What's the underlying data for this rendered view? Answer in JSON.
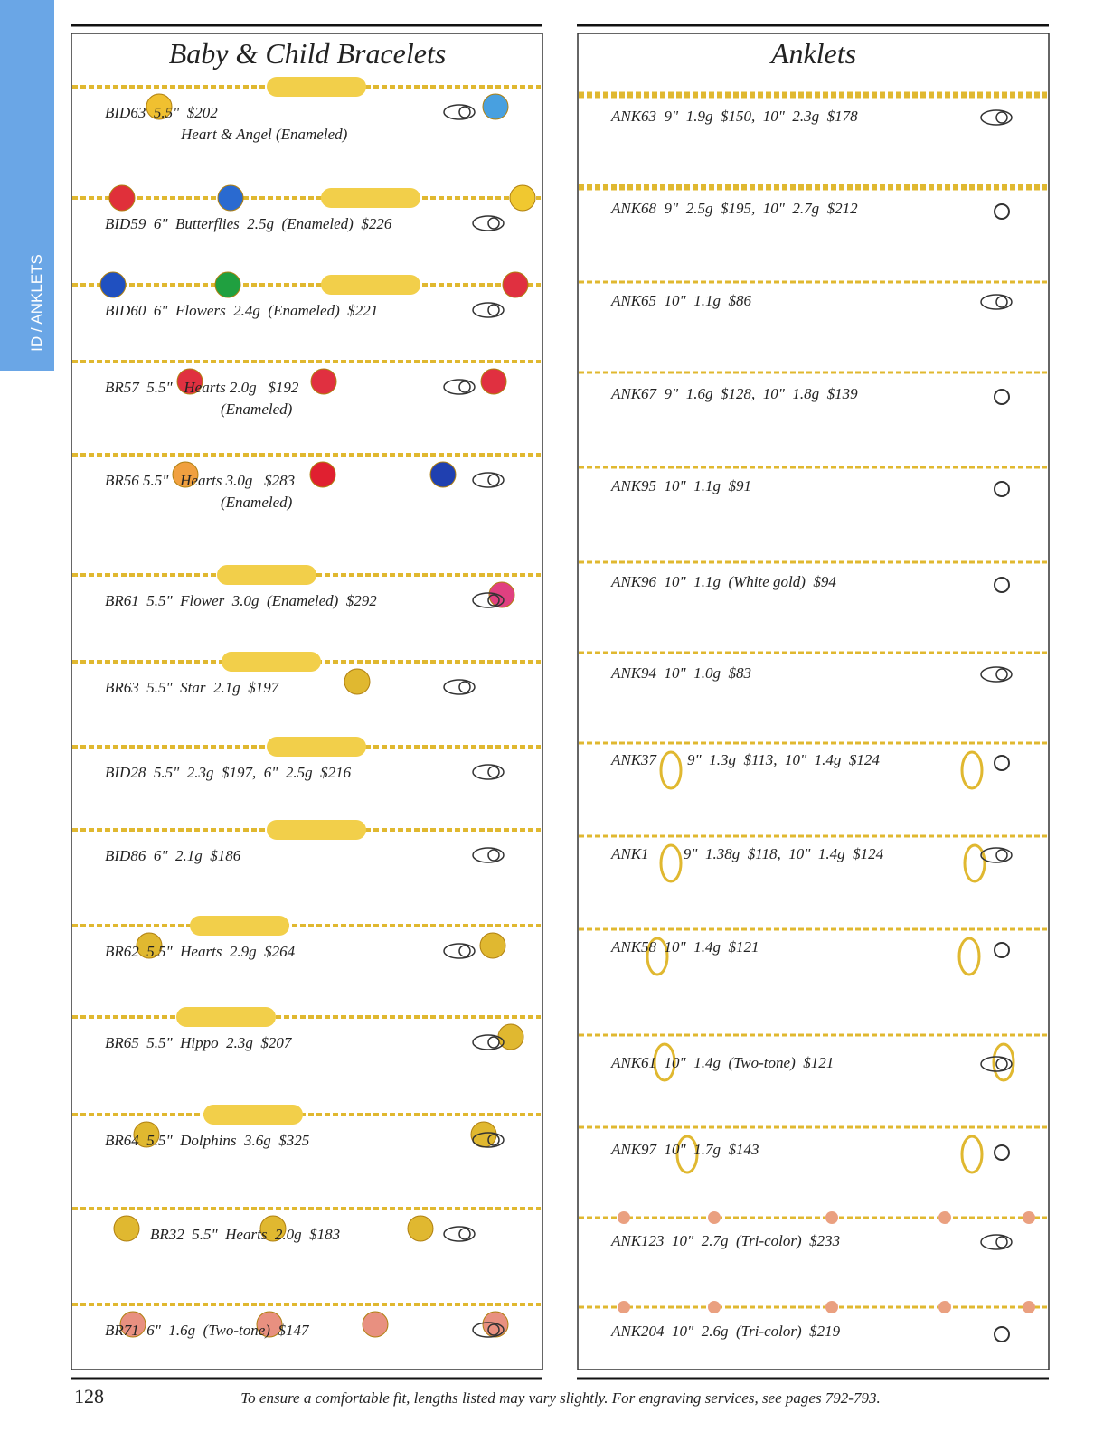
{
  "side_tab": "ID / ANKLETS",
  "left": {
    "title": "Baby & Child Bracelets",
    "items": [
      {
        "text": "BID63  5.5\"  $202",
        "detail": "Heart & Angel (Enameled)"
      },
      {
        "text": "BID59  6\"  Butterflies  2.5g  (Enameled)  $226"
      },
      {
        "text": "BID60  6\"  Flowers  2.4g  (Enameled)  $221"
      },
      {
        "text": "BR57  5.5\"   Hearts 2.0g   $192",
        "detail": "(Enameled)"
      },
      {
        "text": "BR56 5.5\"   Hearts 3.0g   $283",
        "detail": "(Enameled)"
      },
      {
        "text": "BR61  5.5\"  Flower  3.0g  (Enameled)  $292"
      },
      {
        "text": "BR63  5.5\"  Star  2.1g  $197"
      },
      {
        "text": "BID28  5.5\"  2.3g  $197,  6\"  2.5g  $216"
      },
      {
        "text": "BID86  6\"  2.1g  $186"
      },
      {
        "text": "BR62  5.5\"  Hearts  2.9g  $264"
      },
      {
        "text": "BR65  5.5\"  Hippo  2.3g  $207"
      },
      {
        "text": "BR64  5.5\"  Dolphins  3.6g  $325"
      },
      {
        "text": "BR32  5.5\"  Hearts  2.0g  $183"
      },
      {
        "text": "BR71  6\"  1.6g  (Two-tone)  $147"
      }
    ]
  },
  "right": {
    "title": "Anklets",
    "items": [
      {
        "text": "ANK63  9\"  1.9g  $150,  10\"  2.3g  $178"
      },
      {
        "text": "ANK68  9\"  2.5g  $195,  10\"  2.7g  $212"
      },
      {
        "text": "ANK65  10\"  1.1g  $86"
      },
      {
        "text": "ANK67  9\"  1.6g  $128,  10\"  1.8g  $139"
      },
      {
        "text": "ANK95  10\"  1.1g  $91"
      },
      {
        "text": "ANK96  10\"  1.1g  (White gold)  $94"
      },
      {
        "text": "ANK94  10\"  1.0g  $83"
      },
      {
        "text": "ANK37        9\"  1.3g  $113,  10\"  1.4g  $124"
      },
      {
        "text": "ANK1         9\"  1.38g  $118,  10\"  1.4g  $124"
      },
      {
        "text": "ANK58  10\"  1.4g  $121"
      },
      {
        "text": "ANK61  10\"  1.4g  (Two-tone)  $121"
      },
      {
        "text": "ANK97  10\"  1.7g  $143"
      },
      {
        "text": "ANK123  10\"  2.7g  (Tri-color)  $233"
      },
      {
        "text": "ANK204  10\"  2.6g  (Tri-color)  $219"
      }
    ]
  },
  "footer": {
    "page_number": "128",
    "note": "To ensure a comfortable fit, lengths listed may vary slightly. For engraving services, see pages 792-793."
  }
}
